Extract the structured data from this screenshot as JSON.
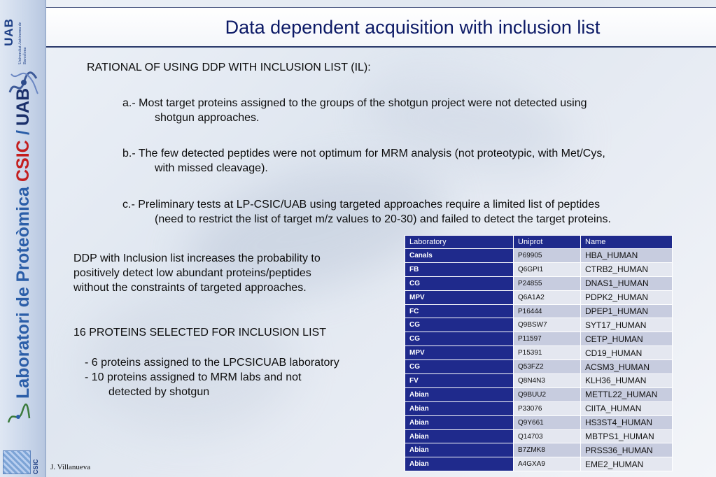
{
  "sidebar": {
    "uab_logo_text": "UAB",
    "uab_subtitle": "Universitat Autònoma de Barcelona",
    "vertical_title_part1": "Laboratori de Proteòmica",
    "vertical_title_csic": "CSIC",
    "vertical_title_slash": "/",
    "vertical_title_uab": "UAB",
    "csic_logo_text": "CSIC"
  },
  "header": {
    "title": "Data dependent acquisition with inclusion list"
  },
  "body": {
    "rational_heading": "RATIONAL OF USING DDP WITH INCLUSION LIST (IL):",
    "item_a_line1": "a.- Most target proteins assigned to the groups of the shotgun project were not detected using",
    "item_a_line2": "shotgun approaches.",
    "item_b_line1": "b.- The few detected peptides were not optimum for MRM analysis (not proteotypic, with Met/Cys,",
    "item_b_line2": "with missed cleavage).",
    "item_c_line1": "c.- Preliminary tests at LP-CSIC/UAB using targeted approaches require a limited list of peptides",
    "item_c_line2": "(need to restrict the list of target m/z values to 20-30) and failed to detect the target proteins.",
    "ddp_text_line1": "DDP with Inclusion list increases the probability to",
    "ddp_text_line2": "positively detect low abundant proteins/peptides",
    "ddp_text_line3": "without the constraints of targeted approaches.",
    "selected_heading": "16 PROTEINS SELECTED FOR INCLUSION LIST",
    "bullet1": "- 6 proteins assigned to the LPCSICUAB laboratory",
    "bullet2_line1": "- 10 proteins assigned to MRM labs and not",
    "bullet2_line2": "detected by shotgun"
  },
  "table": {
    "headers": [
      "Laboratory",
      "Uniprot",
      "Name"
    ],
    "rows": [
      [
        "Canals",
        "P69905",
        "HBA_HUMAN"
      ],
      [
        "FB",
        "Q6GPI1",
        "CTRB2_HUMAN"
      ],
      [
        "CG",
        "P24855",
        "DNAS1_HUMAN"
      ],
      [
        "MPV",
        "Q6A1A2",
        "PDPK2_HUMAN"
      ],
      [
        "FC",
        "P16444",
        "DPEP1_HUMAN"
      ],
      [
        "CG",
        "Q9BSW7",
        "SYT17_HUMAN"
      ],
      [
        "CG",
        "P11597",
        "CETP_HUMAN"
      ],
      [
        "MPV",
        "P15391",
        "CD19_HUMAN"
      ],
      [
        "CG",
        "Q53FZ2",
        "ACSM3_HUMAN"
      ],
      [
        "FV",
        "Q8N4N3",
        "KLH36_HUMAN"
      ],
      [
        "Abian",
        "Q9BUU2",
        "METTL22_HUMAN"
      ],
      [
        "Abian",
        "P33076",
        "CIITA_HUMAN"
      ],
      [
        "Abian",
        "Q9Y661",
        "HS3ST4_HUMAN"
      ],
      [
        "Abian",
        "Q14703",
        "MBTPS1_HUMAN"
      ],
      [
        "Abian",
        "B7ZMK8",
        "PRSS36_HUMAN"
      ],
      [
        "Abian",
        "A4GXA9",
        "EME2_HUMAN"
      ]
    ]
  },
  "footer": {
    "author": "J. Villanueva"
  },
  "colors": {
    "header_title": "#0c1a66",
    "table_header": "#1f2a8c",
    "csic_red": "#c41e1e"
  }
}
